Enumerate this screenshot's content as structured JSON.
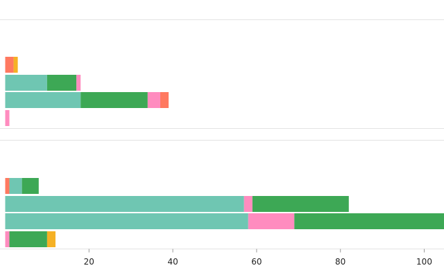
{
  "chart_data": {
    "type": "bar",
    "orientation": "horizontal",
    "stacked": true,
    "x_axis": {
      "visible_range": [
        -1,
        115
      ],
      "ticks": [
        20,
        40,
        60,
        80,
        100
      ]
    },
    "grid": false,
    "legend": "none",
    "panels": [
      {
        "rows": [
          {
            "segments": [
              {
                "value": 2,
                "color": "#ff7960"
              },
              {
                "value": 1,
                "color": "#f5b125"
              }
            ]
          },
          {
            "segments": [
              {
                "value": 10,
                "color": "#6fc6b2"
              },
              {
                "value": 7,
                "color": "#3da855"
              },
              {
                "value": 1,
                "color": "#ff8cbf"
              }
            ]
          },
          {
            "segments": [
              {
                "value": 18,
                "color": "#6fc6b2"
              },
              {
                "value": 16,
                "color": "#3da855"
              },
              {
                "value": 3,
                "color": "#ff8cbf"
              },
              {
                "value": 2,
                "color": "#ff7960"
              }
            ]
          },
          {
            "segments": [
              {
                "value": 1,
                "color": "#ff8cbf"
              }
            ]
          }
        ]
      },
      {
        "rows": [
          {
            "segments": [
              {
                "value": 1,
                "color": "#ff7960"
              },
              {
                "value": 3,
                "color": "#6fc6b2"
              },
              {
                "value": 4,
                "color": "#3da855"
              }
            ]
          },
          {
            "segments": [
              {
                "value": 57,
                "color": "#6fc6b2"
              },
              {
                "value": 2,
                "color": "#ff8cbf"
              },
              {
                "value": 23,
                "color": "#3da855"
              }
            ]
          },
          {
            "segments": [
              {
                "value": 58,
                "color": "#6fc6b2"
              },
              {
                "value": 11,
                "color": "#ff8cbf"
              },
              {
                "value": 37,
                "color": "#3da855"
              }
            ]
          },
          {
            "segments": [
              {
                "value": 1,
                "color": "#ff8cbf"
              },
              {
                "value": 9,
                "color": "#3da855"
              },
              {
                "value": 2,
                "color": "#f5b125"
              }
            ]
          }
        ]
      }
    ]
  }
}
